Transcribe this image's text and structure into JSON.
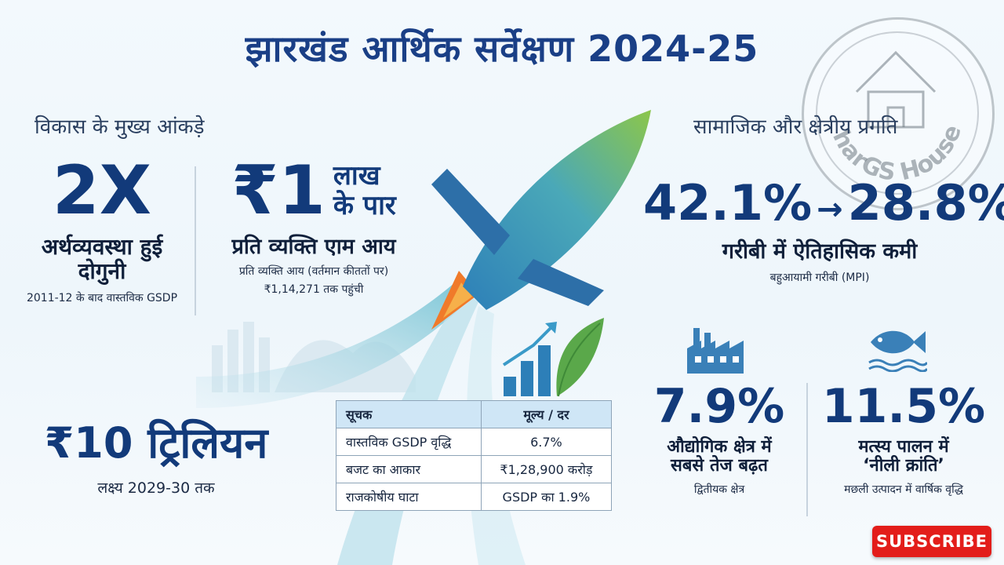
{
  "title": "झारखंड आर्थिक सर्वेक्षण 2024-25",
  "left": {
    "heading": "विकास के मुख्य आंकड़े",
    "stat1": {
      "value": "2X",
      "label_line1": "अर्थव्यवस्था हुई",
      "label_line2": "दोगुनी",
      "note": "2011-12 के बाद वास्तविक GSDP"
    },
    "stat2": {
      "value": "₹1",
      "suffix_line1": "लाख",
      "suffix_line2": "के पार",
      "label": "प्रति व्यक्ति एाम आय",
      "note_line1": "प्रति व्यक्ति आय (वर्तमान कीततों पर)",
      "note_line2": "₹1,14,271 तक पहुंची"
    },
    "stat3": {
      "value": "₹10 ट्रिलियन",
      "note": "लक्ष्य 2029-30 तक"
    }
  },
  "table": {
    "headers": [
      "सूचक",
      "मूल्य / दर"
    ],
    "rows": [
      [
        "वास्तविक GSDP वृद्धि",
        "6.7%"
      ],
      [
        "बजट का आकार",
        "₹1,28,900 करोड़"
      ],
      [
        "राजकोषीय घाटा",
        "GSDP का 1.9%"
      ]
    ]
  },
  "right": {
    "heading": "सामाजिक और क्षेत्रीय प्रगति",
    "poverty": {
      "from": "42.1%",
      "arrow": "→",
      "to": "28.8%",
      "label": "गरीबी में ऐतिहासिक कमी",
      "note": "बहुआयामी गरीबी (MPI)"
    },
    "industry": {
      "value": "7.9%",
      "label_line1": "औद्योगिक क्षेत्र में",
      "label_line2": "सबसे तेज बढ़त",
      "note": "द्वितीयक क्षेत्र",
      "icon": "factory-icon"
    },
    "fish": {
      "value": "11.5%",
      "label_line1": "मत्स्य पालन में",
      "label_line2": "‘नीली क्रांति’",
      "note": "मछली उत्पादन में वार्षिक वृद्धि",
      "icon": "fish-icon"
    }
  },
  "stamp": {
    "text": "harGS House"
  },
  "subscribe": {
    "label": "SUBSCRIBE"
  },
  "colors": {
    "title": "#1a3f86",
    "accent_orange": "#f07a2a",
    "accent_green": "#5aa84a",
    "accent_blue": "#2d7fb8",
    "subscribe": "#e31d1a"
  }
}
